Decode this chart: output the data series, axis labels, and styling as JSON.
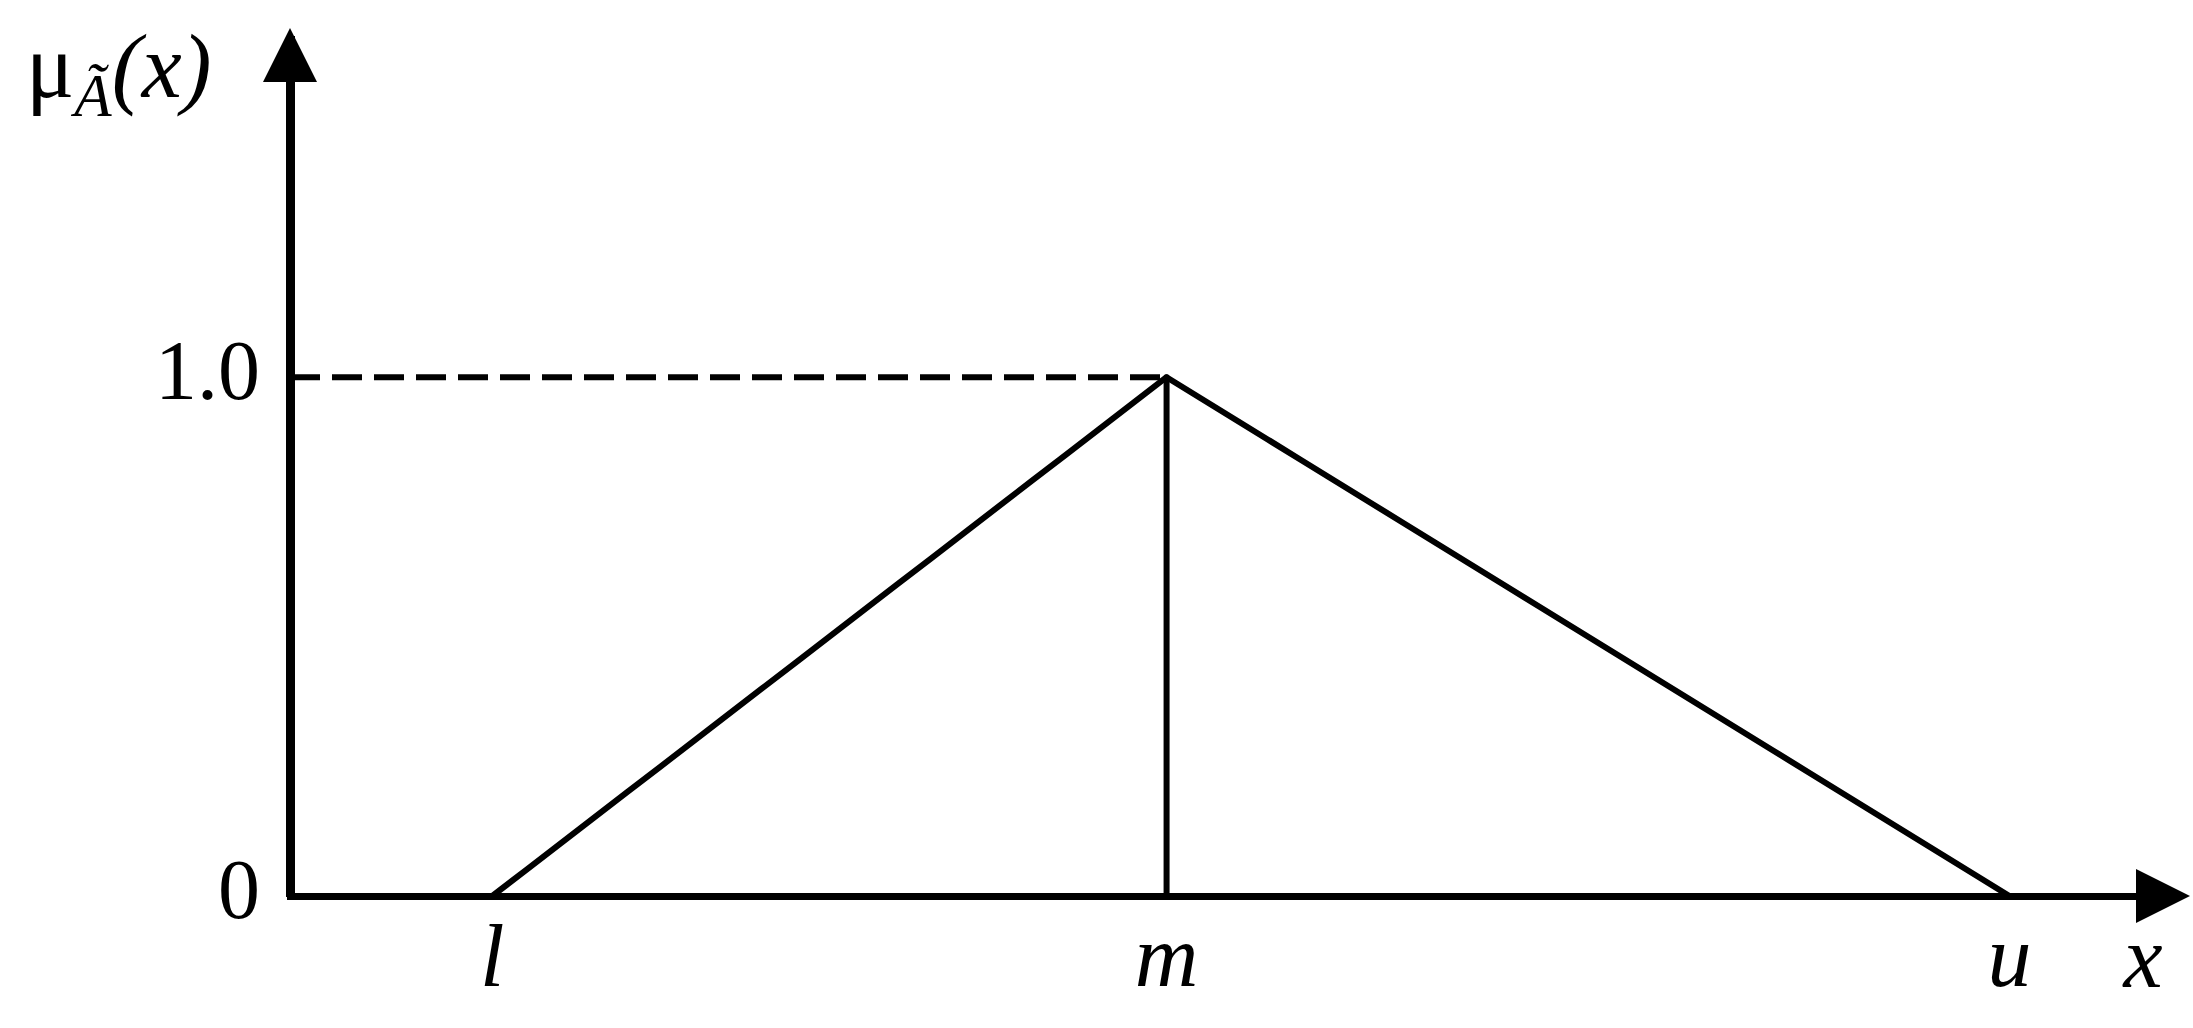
{
  "chart_data": {
    "type": "line",
    "ylabel": "μ$_{Ã}$(x)",
    "xlabel": "x",
    "categories": [
      null,
      null,
      null,
      null,
      null,
      null,
      "l",
      null,
      null,
      null,
      null,
      null,
      null,
      null,
      null,
      null,
      null,
      null,
      null,
      null,
      null,
      null,
      null,
      null,
      null,
      null,
      "m",
      null,
      null,
      null,
      null,
      null,
      null,
      null,
      null,
      null,
      null,
      null,
      null,
      null,
      null,
      null,
      null,
      null,
      null,
      null,
      null,
      null,
      null,
      null,
      null,
      "u",
      null,
      null,
      null,
      null,
      null
    ],
    "ylim": [
      0,
      1.65
    ],
    "yticks": [
      0,
      {
        "value": 1,
        "label": "1.0"
      }
    ],
    "series": [
      {
        "color": "#000000",
        "values": [
          null,
          null,
          null,
          null,
          null,
          null,
          0,
          0.05,
          0.1,
          0.15,
          0.2,
          0.25,
          0.3,
          0.35,
          0.4,
          0.45,
          0.5,
          0.55,
          0.6,
          0.65,
          0.7,
          0.75,
          0.8,
          0.85,
          0.9,
          0.95,
          1,
          0.96,
          0.92,
          0.88,
          0.84,
          0.8,
          0.76,
          0.72,
          0.68,
          0.64,
          0.6,
          0.56,
          0.52,
          0.48,
          0.44,
          0.4,
          0.36,
          0.32,
          0.28,
          0.24,
          0.2,
          0.16,
          0.12,
          0.08,
          0.04,
          0,
          null,
          null,
          null,
          null,
          null
        ]
      },
      {
        "color": "#000000",
        "line_style": "dashed",
        "values": [
          1,
          1,
          1,
          1,
          1,
          1,
          1,
          1,
          1,
          1,
          1,
          1,
          1,
          1,
          1,
          1,
          1,
          1,
          1,
          1,
          1,
          1,
          1,
          1,
          1,
          1,
          1,
          null,
          null,
          null,
          null,
          null,
          null,
          null,
          null,
          null,
          null,
          null,
          null,
          null,
          null,
          null,
          null,
          null,
          null,
          null,
          null,
          null,
          null,
          null,
          null,
          null,
          null,
          null,
          null,
          null,
          null
        ]
      }
    ],
    "ref_lines": [
      {
        "axis": "x",
        "value": "m",
        "color": "#000000"
      }
    ],
    "marker": "none",
    "legend": false,
    "grid": false
  }
}
